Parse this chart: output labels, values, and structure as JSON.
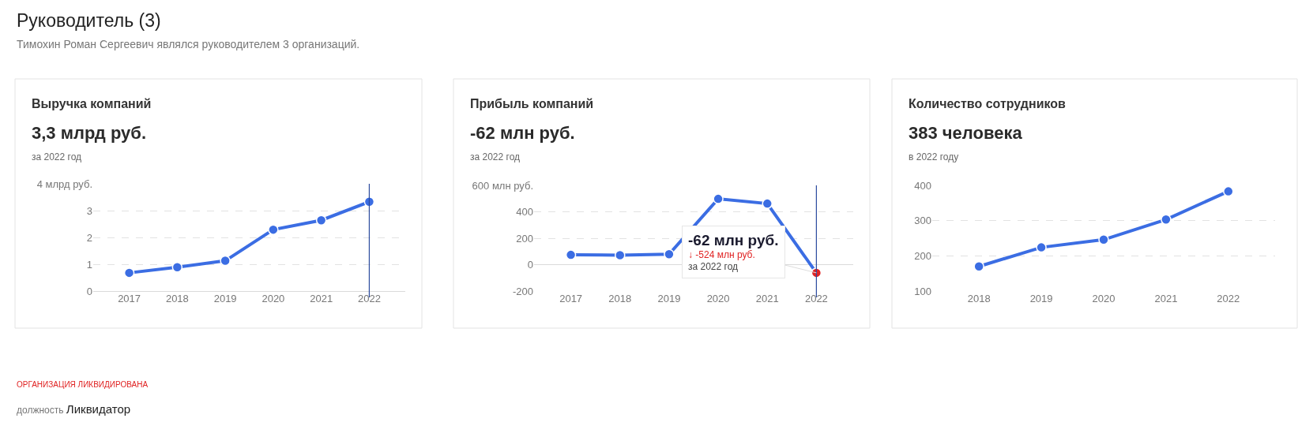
{
  "chart_data": [
    {
      "type": "other",
      "title": "Руководитель (3)",
      "subtitle": "Тимохин Роман Сергеевич являлся руководителем 3 организаций."
    },
    {
      "type": "line",
      "title": "Выручка компаний",
      "subtitle": "3,3 млрд руб.",
      "annotations": [
        "за 2022 год"
      ],
      "categories": [
        "2017",
        "2018",
        "2019",
        "2020",
        "2021",
        "2022"
      ],
      "series": [
        {
          "color": "#3b6de3",
          "values": [
            0.68,
            0.89,
            1.13,
            2.29,
            2.64,
            3.33
          ]
        }
      ],
      "ylim": [
        0,
        4
      ],
      "yticks": [
        0,
        1,
        2,
        3,
        {
          "value": 4,
          "label": "4 млрд руб."
        }
      ],
      "grid": "y",
      "marker": "circle",
      "ref_lines": [
        {
          "axis": "x",
          "value": "2022",
          "color": "#2b4a9e"
        }
      ]
    },
    {
      "type": "line",
      "title": "Прибыль компаний",
      "subtitle": "-62 млн руб.",
      "annotations": [
        "за 2022 год",
        {
          "text": "-62 млн руб.\n↓ -524 млн руб.\nза 2022 год",
          "x": "2022",
          "y": -62
        }
      ],
      "categories": [
        "2017",
        "2018",
        "2019",
        "2020",
        "2021",
        "2022"
      ],
      "series": [
        {
          "color": "#3b6de3",
          "colors": [
            "#3b6de3",
            "#3b6de3",
            "#3b6de3",
            "#3b6de3",
            "#3b6de3",
            "#e02424"
          ],
          "values": [
            74,
            72,
            79,
            498,
            462,
            -62
          ]
        }
      ],
      "ylim": [
        -200,
        600
      ],
      "yticks": [
        -200,
        0,
        200,
        400,
        {
          "value": 600,
          "label": "600 млн руб."
        }
      ],
      "grid": "y",
      "marker": "circle",
      "ref_lines": [
        {
          "axis": "x",
          "value": "2022",
          "color": "#2b4a9e"
        }
      ]
    },
    {
      "type": "line",
      "title": "Количество сотрудников",
      "subtitle": "383 человека",
      "annotations": [
        "в 2022 году"
      ],
      "categories": [
        "2018",
        "2019",
        "2020",
        "2021",
        "2022"
      ],
      "series": [
        {
          "color": "#3b6de3",
          "values": [
            170,
            224,
            246,
            303,
            383
          ]
        }
      ],
      "ylim": [
        100,
        400
      ],
      "yticks": [
        100,
        200,
        300,
        400
      ],
      "grid": "y",
      "marker": "circle"
    },
    {
      "type": "other",
      "annotations": [
        "ОРГАНИЗАЦИЯ ЛИКВИДИРОВАНА",
        "должность Ликвидатор"
      ]
    }
  ]
}
